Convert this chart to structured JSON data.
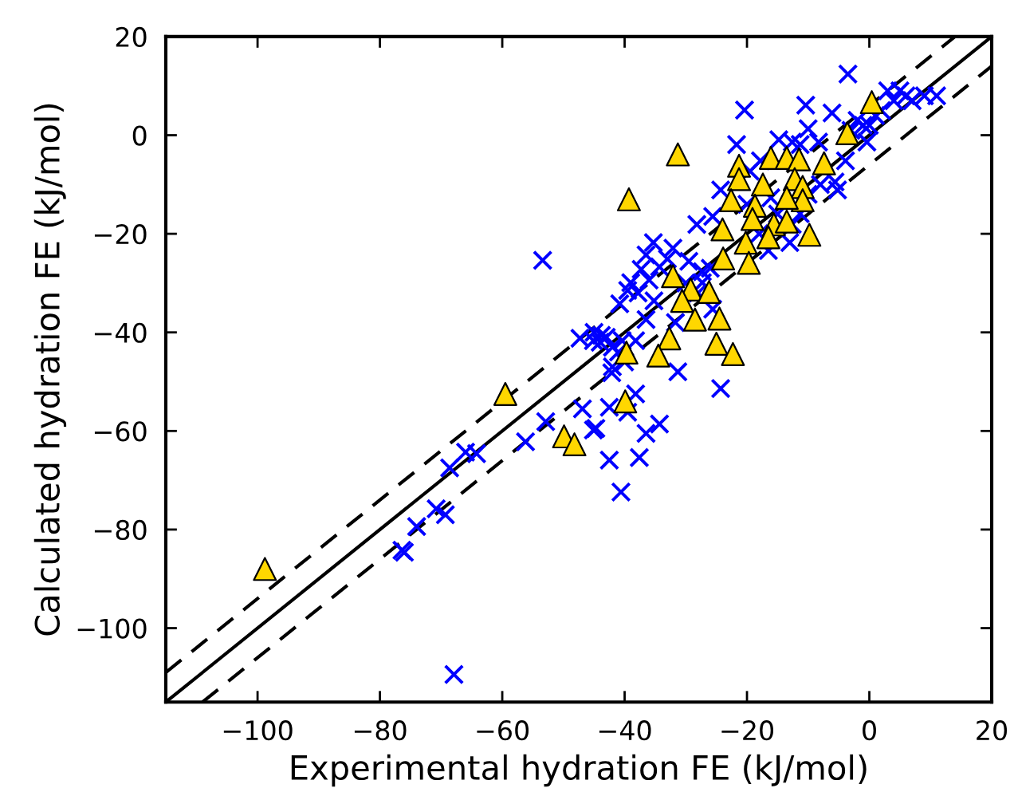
{
  "chart_data": {
    "type": "scatter",
    "xlabel": "Experimental hydration FE (kJ/mol)",
    "ylabel": "Calculated hydration FE (kJ/mol)",
    "xlim": [
      -115,
      20
    ],
    "ylim": [
      -115,
      20
    ],
    "xticks": [
      -100,
      -80,
      -60,
      -40,
      -20,
      0,
      20
    ],
    "yticks": [
      -100,
      -80,
      -60,
      -40,
      -20,
      0,
      20
    ],
    "grid": false,
    "legend": false,
    "series": [
      {
        "type": "line",
        "color": "#000000",
        "line_style": "solid",
        "marker": "none",
        "x": [
          -115,
          20
        ],
        "values": [
          -115,
          20
        ]
      },
      {
        "type": "line",
        "color": "#000000",
        "line_style": "dashed",
        "marker": "none",
        "x": [
          -115,
          14
        ],
        "values": [
          -109,
          20
        ]
      },
      {
        "type": "line",
        "color": "#000000",
        "line_style": "dashed",
        "marker": "none",
        "x": [
          -109,
          20
        ],
        "values": [
          -115,
          14
        ]
      },
      {
        "color": "#0000ff",
        "marker": "cross",
        "x": [
          -3.5,
          -20.4,
          -10.4,
          -6.1,
          3,
          5,
          6,
          9,
          11,
          7,
          4,
          2,
          -2,
          -1,
          0,
          -3,
          1,
          -0.4,
          -3.9,
          -5.6,
          -5.2,
          -10,
          -8.3,
          -12.6,
          -11.3,
          -14.8,
          -21.7,
          -17.8,
          -19.5,
          -24.3,
          -16.1,
          -12.6,
          -11.3,
          -12.6,
          -25.6,
          -28.2,
          -13,
          -16.5,
          -35.3,
          -32.1,
          -36.5,
          -33,
          -29.5,
          -27.3,
          -37.3,
          -34.3,
          -39,
          -36,
          -39.5,
          -40.8,
          -37.8,
          -35.2,
          -36.5,
          -27.3,
          -25.6,
          -31.7,
          -45,
          -43,
          -42,
          -44,
          -40.4,
          -38.2,
          -42.1,
          -31.3,
          -24.3,
          -38.2,
          -42.5,
          -39.5,
          -44.7,
          -36.5,
          -34.3,
          -42.5,
          -37.6,
          -40.6,
          -46.9,
          -45.1,
          -52.9,
          -56.2,
          -64.2,
          -66,
          -68.6,
          -70.8,
          -69.3,
          -74,
          -76.4,
          -76,
          -67.9,
          -53.4,
          -47.3,
          -45.1,
          -43.8,
          -41,
          -40,
          -42,
          -20,
          -18,
          -15,
          -10,
          -8,
          -30,
          -28,
          -26
        ],
        "values": [
          12.4,
          5.1,
          6.1,
          4.5,
          9,
          9,
          8,
          8,
          8,
          7,
          7,
          5,
          3,
          2,
          2,
          1,
          4,
          -1.4,
          -5.2,
          -9.5,
          -11.1,
          1.3,
          -1.4,
          -1.4,
          -1.9,
          -0.9,
          -1.9,
          -5.2,
          -7.3,
          -11.1,
          -12.7,
          null,
          -15.9,
          -18.1,
          -16.5,
          -18.1,
          -21.8,
          -23.4,
          -21.8,
          -22.9,
          -24.3,
          -25.1,
          -25.6,
          -27.7,
          -27.2,
          -26.7,
          -29.9,
          -29.4,
          -31.5,
          -34.2,
          -32,
          -33.6,
          -37.4,
          -29.9,
          -35.3,
          -38,
          -40,
          -41,
          -43,
          -42,
          -41.7,
          -41.7,
          -48.2,
          -48,
          -51.4,
          -52.5,
          -55.2,
          -56.2,
          -59.5,
          -60.5,
          -58.6,
          -65.9,
          -65.4,
          -72.4,
          -55.5,
          -59.8,
          -58.1,
          -62.2,
          -64.6,
          -64.3,
          -67.5,
          -75.8,
          -77,
          -79.4,
          -84.2,
          -84.6,
          -109.4,
          -25.4,
          -41.2,
          -41.7,
          -40.6,
          -44,
          -46,
          -47,
          -14,
          -20,
          -16,
          -12,
          -10,
          -30,
          -32,
          -27
        ]
      },
      {
        "color": "#ffd700",
        "marker": "triangle",
        "x": [
          0.4,
          -3.6,
          -31.3,
          -39.3,
          -21.3,
          -21.3,
          -16.1,
          -13.5,
          -11.5,
          -7.4,
          -12.2,
          -10.9,
          -10.9,
          -17.4,
          -13.5,
          -22.6,
          -18.7,
          -19.1,
          -15.6,
          -13.5,
          -16.5,
          -9.8,
          -24,
          -20.2,
          -23.9,
          -19.7,
          -32.1,
          -29.2,
          -26.2,
          -30.6,
          -28.5,
          -24.5,
          -32.7,
          -25,
          -22.3,
          -34.5,
          -39.7,
          -39.9,
          -59.5,
          -49.9,
          -48.2,
          -98.8
        ],
        "values": [
          6.7,
          0.4,
          -3.9,
          -13,
          -6.2,
          -8.9,
          -4.6,
          -4.6,
          -4.9,
          -5.7,
          -8.9,
          -10.5,
          -13.2,
          -10,
          -12.7,
          -13.2,
          -14.3,
          -17,
          -18.1,
          -17.5,
          -20.7,
          -20.2,
          -19.1,
          -21.8,
          -25,
          -25.9,
          -28.6,
          -31.3,
          -31.8,
          -33.6,
          -37.4,
          -37.2,
          -41.2,
          -42.3,
          -44.4,
          -44.7,
          -44.1,
          -54,
          -52.5,
          -61.1,
          -62.7,
          -88
        ]
      }
    ]
  }
}
